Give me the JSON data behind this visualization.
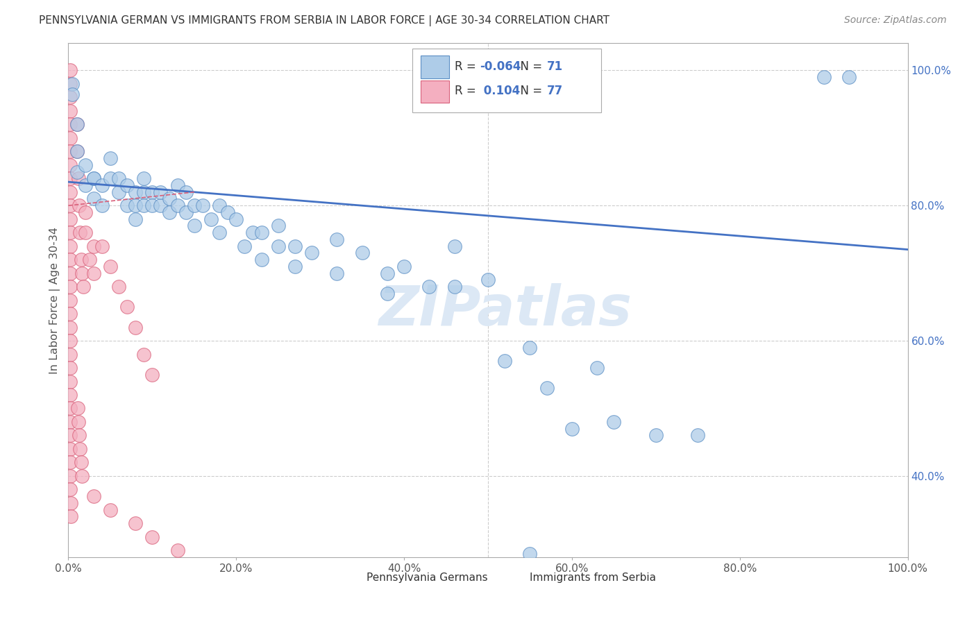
{
  "title": "PENNSYLVANIA GERMAN VS IMMIGRANTS FROM SERBIA IN LABOR FORCE | AGE 30-34 CORRELATION CHART",
  "source": "Source: ZipAtlas.com",
  "ylabel": "In Labor Force | Age 30-34",
  "xlim": [
    0.0,
    1.0
  ],
  "ylim": [
    0.28,
    1.04
  ],
  "blue_R": "-0.064",
  "blue_N": "71",
  "pink_R": "0.104",
  "pink_N": "77",
  "blue_color": "#aecce8",
  "pink_color": "#f4afc0",
  "blue_edge_color": "#5b8ec4",
  "pink_edge_color": "#d9607a",
  "blue_line_color": "#4472c4",
  "pink_line_color": "#d9607a",
  "blue_points": [
    [
      0.005,
      0.98
    ],
    [
      0.005,
      0.965
    ],
    [
      0.01,
      0.92
    ],
    [
      0.01,
      0.88
    ],
    [
      0.01,
      0.85
    ],
    [
      0.02,
      0.86
    ],
    [
      0.02,
      0.83
    ],
    [
      0.03,
      0.84
    ],
    [
      0.03,
      0.81
    ],
    [
      0.03,
      0.84
    ],
    [
      0.04,
      0.83
    ],
    [
      0.04,
      0.8
    ],
    [
      0.05,
      0.87
    ],
    [
      0.05,
      0.84
    ],
    [
      0.06,
      0.82
    ],
    [
      0.06,
      0.84
    ],
    [
      0.07,
      0.83
    ],
    [
      0.07,
      0.8
    ],
    [
      0.08,
      0.82
    ],
    [
      0.08,
      0.8
    ],
    [
      0.08,
      0.78
    ],
    [
      0.09,
      0.84
    ],
    [
      0.09,
      0.82
    ],
    [
      0.09,
      0.8
    ],
    [
      0.1,
      0.82
    ],
    [
      0.1,
      0.8
    ],
    [
      0.11,
      0.8
    ],
    [
      0.11,
      0.82
    ],
    [
      0.12,
      0.81
    ],
    [
      0.12,
      0.79
    ],
    [
      0.13,
      0.83
    ],
    [
      0.13,
      0.8
    ],
    [
      0.14,
      0.79
    ],
    [
      0.14,
      0.82
    ],
    [
      0.15,
      0.8
    ],
    [
      0.15,
      0.77
    ],
    [
      0.16,
      0.8
    ],
    [
      0.17,
      0.78
    ],
    [
      0.18,
      0.8
    ],
    [
      0.18,
      0.76
    ],
    [
      0.19,
      0.79
    ],
    [
      0.2,
      0.78
    ],
    [
      0.21,
      0.74
    ],
    [
      0.22,
      0.76
    ],
    [
      0.23,
      0.76
    ],
    [
      0.23,
      0.72
    ],
    [
      0.25,
      0.77
    ],
    [
      0.25,
      0.74
    ],
    [
      0.27,
      0.74
    ],
    [
      0.27,
      0.71
    ],
    [
      0.29,
      0.73
    ],
    [
      0.32,
      0.75
    ],
    [
      0.32,
      0.7
    ],
    [
      0.35,
      0.73
    ],
    [
      0.38,
      0.7
    ],
    [
      0.38,
      0.67
    ],
    [
      0.4,
      0.71
    ],
    [
      0.43,
      0.68
    ],
    [
      0.46,
      0.74
    ],
    [
      0.46,
      0.68
    ],
    [
      0.5,
      0.69
    ],
    [
      0.52,
      0.57
    ],
    [
      0.55,
      0.59
    ],
    [
      0.57,
      0.53
    ],
    [
      0.6,
      0.47
    ],
    [
      0.63,
      0.56
    ],
    [
      0.65,
      0.48
    ],
    [
      0.7,
      0.46
    ],
    [
      0.75,
      0.46
    ],
    [
      0.9,
      0.99
    ],
    [
      0.93,
      0.99
    ],
    [
      0.55,
      0.285
    ]
  ],
  "pink_points": [
    [
      0.002,
      1.0
    ],
    [
      0.002,
      0.98
    ],
    [
      0.002,
      0.96
    ],
    [
      0.002,
      0.94
    ],
    [
      0.002,
      0.92
    ],
    [
      0.002,
      0.9
    ],
    [
      0.002,
      0.88
    ],
    [
      0.002,
      0.86
    ],
    [
      0.002,
      0.84
    ],
    [
      0.002,
      0.82
    ],
    [
      0.002,
      0.8
    ],
    [
      0.002,
      0.78
    ],
    [
      0.002,
      0.76
    ],
    [
      0.002,
      0.74
    ],
    [
      0.002,
      0.72
    ],
    [
      0.002,
      0.7
    ],
    [
      0.002,
      0.68
    ],
    [
      0.002,
      0.66
    ],
    [
      0.002,
      0.64
    ],
    [
      0.002,
      0.62
    ],
    [
      0.002,
      0.6
    ],
    [
      0.002,
      0.58
    ],
    [
      0.002,
      0.56
    ],
    [
      0.002,
      0.54
    ],
    [
      0.002,
      0.52
    ],
    [
      0.002,
      0.5
    ],
    [
      0.002,
      0.48
    ],
    [
      0.002,
      0.46
    ],
    [
      0.002,
      0.44
    ],
    [
      0.002,
      0.42
    ],
    [
      0.002,
      0.4
    ],
    [
      0.002,
      0.38
    ],
    [
      0.003,
      0.36
    ],
    [
      0.003,
      0.34
    ],
    [
      0.01,
      0.92
    ],
    [
      0.01,
      0.88
    ],
    [
      0.012,
      0.84
    ],
    [
      0.013,
      0.8
    ],
    [
      0.014,
      0.76
    ],
    [
      0.015,
      0.72
    ],
    [
      0.016,
      0.7
    ],
    [
      0.018,
      0.68
    ],
    [
      0.02,
      0.79
    ],
    [
      0.02,
      0.76
    ],
    [
      0.025,
      0.72
    ],
    [
      0.03,
      0.74
    ],
    [
      0.03,
      0.7
    ],
    [
      0.04,
      0.74
    ],
    [
      0.05,
      0.71
    ],
    [
      0.06,
      0.68
    ],
    [
      0.07,
      0.65
    ],
    [
      0.08,
      0.62
    ],
    [
      0.09,
      0.58
    ],
    [
      0.1,
      0.55
    ],
    [
      0.011,
      0.5
    ],
    [
      0.012,
      0.48
    ],
    [
      0.013,
      0.46
    ],
    [
      0.014,
      0.44
    ],
    [
      0.015,
      0.42
    ],
    [
      0.016,
      0.4
    ],
    [
      0.03,
      0.37
    ],
    [
      0.05,
      0.35
    ],
    [
      0.08,
      0.33
    ],
    [
      0.1,
      0.31
    ],
    [
      0.13,
      0.29
    ]
  ],
  "xtick_labels": [
    "0.0%",
    "20.0%",
    "40.0%",
    "60.0%",
    "80.0%",
    "100.0%"
  ],
  "xtick_vals": [
    0.0,
    0.2,
    0.4,
    0.6,
    0.8,
    1.0
  ],
  "ytick_labels": [
    "40.0%",
    "60.0%",
    "80.0%",
    "100.0%"
  ],
  "ytick_vals": [
    0.4,
    0.6,
    0.8,
    1.0
  ],
  "watermark": "ZIPatlas",
  "legend_label_blue": "Pennsylvania Germans",
  "legend_label_pink": "Immigrants from Serbia",
  "background_color": "#ffffff",
  "grid_color": "#cccccc"
}
